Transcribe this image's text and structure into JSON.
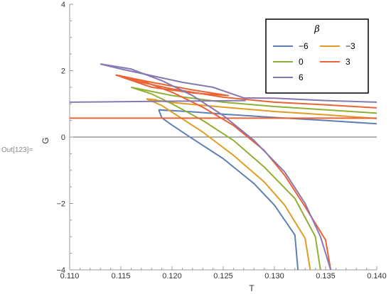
{
  "cell_label": "Out[123]=",
  "chart_data": {
    "type": "line",
    "xlabel": "T",
    "ylabel": "G",
    "xlim": [
      0.11,
      0.14
    ],
    "ylim": [
      -4,
      4
    ],
    "xticks": [
      "0.110",
      "0.115",
      "0.120",
      "0.125",
      "0.130",
      "0.135",
      "0.140"
    ],
    "yticks": [
      "-4",
      "-2",
      "0",
      "2",
      "4"
    ],
    "legend": {
      "title": "β",
      "placement": "top-right"
    },
    "series": [
      {
        "name": "−6",
        "color": "#5E81B5",
        "upper": [
          [
            0.1187,
            0.82
          ],
          [
            0.122,
            0.76
          ],
          [
            0.125,
            0.69
          ],
          [
            0.13,
            0.59
          ],
          [
            0.135,
            0.5
          ],
          [
            0.14,
            0.4
          ]
        ],
        "lower": [
          [
            0.1187,
            0.82
          ],
          [
            0.119,
            0.58
          ],
          [
            0.12,
            0.36
          ],
          [
            0.122,
            -0.05
          ],
          [
            0.125,
            -0.65
          ],
          [
            0.128,
            -1.4
          ],
          [
            0.13,
            -2.05
          ],
          [
            0.132,
            -2.95
          ],
          [
            0.1323,
            -4.0
          ]
        ],
        "stub": [
          [
            0.1187,
            0.82
          ],
          [
            0.1195,
            0.8
          ]
        ]
      },
      {
        "name": "−3",
        "color": "#E19C24",
        "upper": [
          [
            0.1175,
            1.15
          ],
          [
            0.12,
            1.04
          ],
          [
            0.125,
            0.9
          ],
          [
            0.13,
            0.77
          ],
          [
            0.135,
            0.67
          ],
          [
            0.14,
            0.56
          ]
        ],
        "lower": [
          [
            0.1175,
            1.15
          ],
          [
            0.119,
            0.95
          ],
          [
            0.121,
            0.55
          ],
          [
            0.123,
            0.15
          ],
          [
            0.126,
            -0.55
          ],
          [
            0.129,
            -1.35
          ],
          [
            0.131,
            -2.05
          ],
          [
            0.133,
            -3.05
          ],
          [
            0.1335,
            -4.0
          ]
        ],
        "stub": [
          [
            0.1175,
            1.15
          ],
          [
            0.1185,
            1.12
          ]
        ]
      },
      {
        "name": "0",
        "color": "#8FB032",
        "upper": [
          [
            0.116,
            1.5
          ],
          [
            0.12,
            1.25
          ],
          [
            0.125,
            1.05
          ],
          [
            0.13,
            0.92
          ],
          [
            0.135,
            0.82
          ],
          [
            0.14,
            0.72
          ]
        ],
        "lower": [
          [
            0.116,
            1.5
          ],
          [
            0.118,
            1.3
          ],
          [
            0.12,
            1.0
          ],
          [
            0.123,
            0.5
          ],
          [
            0.126,
            -0.1
          ],
          [
            0.129,
            -0.9
          ],
          [
            0.132,
            -1.85
          ],
          [
            0.134,
            -3.0
          ],
          [
            0.1345,
            -4.0
          ]
        ],
        "stub": []
      },
      {
        "name": "3",
        "color": "#EB6235",
        "upper": [
          [
            0.1145,
            1.87
          ],
          [
            0.117,
            1.65
          ],
          [
            0.12,
            1.45
          ],
          [
            0.125,
            1.2
          ],
          [
            0.13,
            1.05
          ],
          [
            0.135,
            0.97
          ],
          [
            0.14,
            0.88
          ]
        ],
        "lower": [
          [
            0.1145,
            1.87
          ],
          [
            0.117,
            1.7
          ],
          [
            0.12,
            1.35
          ],
          [
            0.123,
            0.9
          ],
          [
            0.126,
            0.35
          ],
          [
            0.129,
            -0.4
          ],
          [
            0.131,
            -1.15
          ],
          [
            0.133,
            -2.1
          ],
          [
            0.135,
            -3.1
          ],
          [
            0.1355,
            -4.0
          ]
        ],
        "flat": [
          [
            0.11,
            0.57
          ],
          [
            0.14,
            0.57
          ]
        ],
        "loop": [
          [
            0.1145,
            1.87
          ],
          [
            0.118,
            1.65
          ],
          [
            0.122,
            1.42
          ],
          [
            0.1255,
            1.25
          ],
          [
            0.122,
            1.33
          ],
          [
            0.118,
            1.5
          ],
          [
            0.1145,
            1.87
          ]
        ]
      },
      {
        "name": "6",
        "color": "#8778B3",
        "upper": [
          [
            0.113,
            2.2
          ],
          [
            0.115,
            2.05
          ],
          [
            0.118,
            1.85
          ],
          [
            0.121,
            1.65
          ],
          [
            0.124,
            1.5
          ],
          [
            0.127,
            1.18
          ],
          [
            0.13,
            1.17
          ],
          [
            0.135,
            1.1
          ],
          [
            0.14,
            1.05
          ]
        ],
        "lower": [
          [
            0.113,
            2.2
          ],
          [
            0.116,
            2.05
          ],
          [
            0.119,
            1.7
          ],
          [
            0.122,
            1.25
          ],
          [
            0.125,
            0.65
          ],
          [
            0.128,
            -0.1
          ],
          [
            0.131,
            -1.05
          ],
          [
            0.133,
            -2.0
          ],
          [
            0.1345,
            -3.0
          ],
          [
            0.1355,
            -4.0
          ]
        ],
        "flat": [
          [
            0.11,
            1.05
          ],
          [
            0.1272,
            1.1
          ]
        ]
      }
    ]
  }
}
